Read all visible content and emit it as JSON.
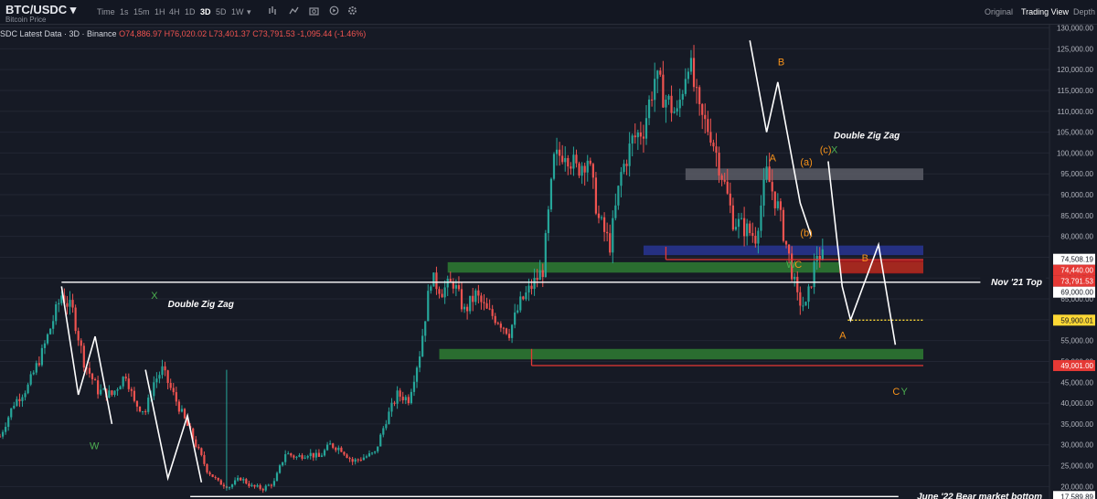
{
  "toolbar": {
    "symbol": "BTC/USDC",
    "symbol_caret": "▾",
    "subtitle": "Bitcoin Price",
    "intervals": [
      "Time",
      "1s",
      "15m",
      "1H",
      "4H",
      "1D",
      "3D",
      "5D",
      "1W"
    ],
    "active_interval": "3D",
    "tools": [
      "chart-type-icon",
      "indicators-icon",
      "fullscreen-icon",
      "camera-icon",
      "replay-icon",
      "settings-icon"
    ],
    "views": [
      "Original",
      "Trading View",
      "Depth"
    ],
    "active_view": "Trading View"
  },
  "legend": {
    "source": "SDC Latest Data · 3D · Binance",
    "ohlc": "O74,886.97 H76,020.02 L73,401.37 C73,791.53 -1,095.44 (-1.46%)"
  },
  "colors": {
    "background": "#161a25",
    "grid": "#222633",
    "candle_up": "#26a69a",
    "candle_down": "#ef5350",
    "zone_green": "#2e7d32",
    "zone_blue": "#283593",
    "zone_gray": "#5a5d66",
    "zone_red": "#b71c1c",
    "annotation_orange": "#f7931a",
    "annotation_green": "#4caf50"
  },
  "chart_data": {
    "type": "candlestick",
    "y_axis": {
      "ticks": [
        20000,
        25000,
        30000,
        35000,
        40000,
        45000,
        50000,
        55000,
        60000,
        65000,
        70000,
        75000,
        80000,
        85000,
        90000,
        95000,
        100000,
        105000,
        110000,
        115000,
        120000,
        125000,
        130000
      ],
      "range": [
        17000,
        131000
      ],
      "price_labels": [
        {
          "value": 74508.19,
          "text": "74,508.19",
          "style": "white"
        },
        {
          "value": 74440.0,
          "text": "74,440.00",
          "style": "red"
        },
        {
          "value": 73791.53,
          "text": "73,791.53",
          "style": "red"
        },
        {
          "value": 69000.0,
          "text": "69,000.00",
          "style": "white"
        },
        {
          "value": 59900.01,
          "text": "59,900.01",
          "style": "yellow"
        },
        {
          "value": 49001.0,
          "text": "49,001.00",
          "style": "red"
        },
        {
          "value": 17589.89,
          "text": "17,589.89",
          "style": "white"
        }
      ]
    },
    "x_axis": {
      "start_bar": 0,
      "end_bar": 330
    },
    "price_path": [
      [
        0,
        32000
      ],
      [
        5,
        40000
      ],
      [
        10,
        44000
      ],
      [
        15,
        52000
      ],
      [
        20,
        62000
      ],
      [
        22,
        66000
      ],
      [
        26,
        62000
      ],
      [
        30,
        50000
      ],
      [
        35,
        43000
      ],
      [
        40,
        42000
      ],
      [
        45,
        47000
      ],
      [
        48,
        40000
      ],
      [
        52,
        38000
      ],
      [
        55,
        45000
      ],
      [
        58,
        48000
      ],
      [
        62,
        42000
      ],
      [
        66,
        36000
      ],
      [
        70,
        30000
      ],
      [
        74,
        24000
      ],
      [
        78,
        21000
      ],
      [
        82,
        20000
      ],
      [
        86,
        22000
      ],
      [
        90,
        20000
      ],
      [
        94,
        19500
      ],
      [
        98,
        21000
      ],
      [
        102,
        28000
      ],
      [
        106,
        27000
      ],
      [
        110,
        28000
      ],
      [
        114,
        27000
      ],
      [
        118,
        30000
      ],
      [
        122,
        29000
      ],
      [
        126,
        26000
      ],
      [
        130,
        27000
      ],
      [
        134,
        28000
      ],
      [
        138,
        36000
      ],
      [
        142,
        42000
      ],
      [
        146,
        41000
      ],
      [
        150,
        52000
      ],
      [
        154,
        70000
      ],
      [
        158,
        67000
      ],
      [
        162,
        69000
      ],
      [
        166,
        62000
      ],
      [
        170,
        66000
      ],
      [
        174,
        62000
      ],
      [
        178,
        60000
      ],
      [
        182,
        57000
      ],
      [
        186,
        64000
      ],
      [
        190,
        68000
      ],
      [
        194,
        72000
      ],
      [
        198,
        98000
      ],
      [
        202,
        101000
      ],
      [
        206,
        96000
      ],
      [
        210,
        99000
      ],
      [
        214,
        84000
      ],
      [
        218,
        78000
      ],
      [
        222,
        95000
      ],
      [
        226,
        103000
      ],
      [
        230,
        106000
      ],
      [
        234,
        118000
      ],
      [
        238,
        113000
      ],
      [
        242,
        109000
      ],
      [
        246,
        123000
      ],
      [
        250,
        109000
      ],
      [
        254,
        105000
      ],
      [
        258,
        95000
      ],
      [
        262,
        84000
      ],
      [
        266,
        82000
      ],
      [
        270,
        80000
      ],
      [
        274,
        95000
      ],
      [
        278,
        87000
      ],
      [
        282,
        75000
      ],
      [
        285,
        65000
      ],
      [
        288,
        63000
      ],
      [
        292,
        76000
      ],
      [
        294,
        75000
      ]
    ],
    "zones": [
      {
        "color": "gray",
        "x1": 245,
        "x2": 330,
        "y1": 93500,
        "y2": 96300
      },
      {
        "color": "blue",
        "x1": 230,
        "x2": 330,
        "y1": 75500,
        "y2": 77800
      },
      {
        "color": "green",
        "x1": 160,
        "x2": 330,
        "y1": 71300,
        "y2": 73800
      },
      {
        "color": "red",
        "x1": 300,
        "x2": 330,
        "y1": 71100,
        "y2": 74300
      },
      {
        "color": "green",
        "x1": 157,
        "x2": 330,
        "y1": 50500,
        "y2": 53000
      }
    ],
    "hlines": [
      {
        "y": 69000,
        "x1": 22,
        "x2": 355,
        "color": "white",
        "label": "Nov '21 Top"
      },
      {
        "y": 17589.89,
        "x1": 68,
        "x2": 355,
        "color": "white",
        "label": "June '22 Bear market bottom"
      },
      {
        "y": 49001,
        "x1": 190,
        "x2": 330,
        "color": "red",
        "x_left_tick": 190,
        "y_left_tick": 53000
      },
      {
        "y": 74440,
        "x1": 238,
        "x2": 330,
        "color": "red",
        "x_left_tick": 238,
        "y_left_tick": 77500
      },
      {
        "y": 59900,
        "x1": 303,
        "x2": 330,
        "color": "yellow",
        "dashed": true
      }
    ],
    "wave_lines": [
      {
        "points": [
          [
            22,
            68000
          ],
          [
            28,
            42000
          ],
          [
            34,
            56000
          ],
          [
            40,
            35000
          ]
        ]
      },
      {
        "points": [
          [
            52,
            48000
          ],
          [
            60,
            22000
          ],
          [
            67,
            37000
          ],
          [
            72,
            21000
          ]
        ]
      },
      {
        "points": [
          [
            268,
            127000
          ],
          [
            274,
            105000
          ],
          [
            278,
            117000
          ],
          [
            286,
            88000
          ],
          [
            290,
            80000
          ]
        ]
      },
      {
        "points": [
          [
            296,
            98000
          ],
          [
            301,
            68000
          ],
          [
            304,
            59900
          ],
          [
            314,
            78000
          ],
          [
            320,
            54000
          ]
        ]
      }
    ],
    "annotations": [
      {
        "text": "Double Zig Zag",
        "x": 60,
        "y": 63000,
        "color": "white"
      },
      {
        "text": "Double Zig Zag",
        "x": 298,
        "y": 103500,
        "color": "white"
      },
      {
        "text": "X",
        "x": 54,
        "y": 65000,
        "color": "green"
      },
      {
        "text": "W",
        "x": 32,
        "y": 29000,
        "color": "green"
      },
      {
        "text": "B",
        "x": 278,
        "y": 121000,
        "color": "orange"
      },
      {
        "text": "A",
        "x": 275,
        "y": 98000,
        "color": "orange"
      },
      {
        "text": "(a)",
        "x": 286,
        "y": 97000,
        "color": "orange"
      },
      {
        "text": "(c)",
        "x": 293,
        "y": 100000,
        "color": "orange"
      },
      {
        "text": "X",
        "x": 297,
        "y": 100000,
        "color": "green"
      },
      {
        "text": "(b)",
        "x": 286,
        "y": 80000,
        "color": "orange"
      },
      {
        "text": "W",
        "x": 281,
        "y": 72500,
        "color": "green"
      },
      {
        "text": "C",
        "x": 284,
        "y": 72500,
        "color": "orange"
      },
      {
        "text": "B",
        "x": 308,
        "y": 74000,
        "color": "orange"
      },
      {
        "text": "A",
        "x": 300,
        "y": 55500,
        "color": "orange"
      },
      {
        "text": "C",
        "x": 319,
        "y": 42000,
        "color": "orange"
      },
      {
        "text": "Y",
        "x": 322,
        "y": 42000,
        "color": "green"
      }
    ]
  }
}
